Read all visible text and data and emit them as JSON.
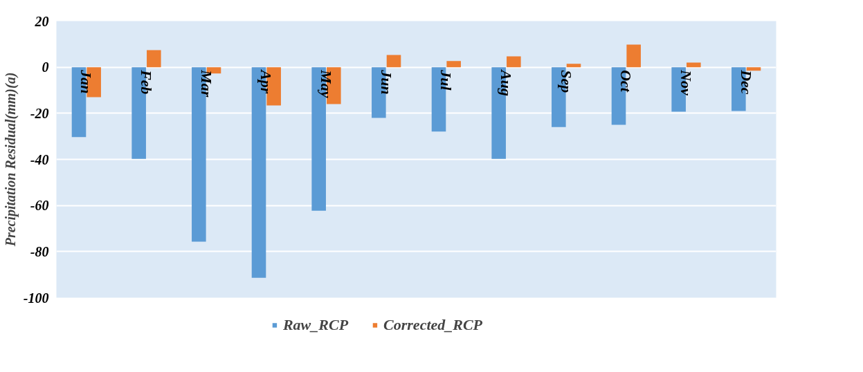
{
  "chart_data": {
    "type": "bar",
    "ylabel": "Precipitation Residual(mm)(a)",
    "categories": [
      "Jan",
      "Feb",
      "Mar",
      "Apr",
      "May",
      "Jun",
      "Jul",
      "Aug",
      "Sep",
      "Oct",
      "Nov",
      "Dec"
    ],
    "series": [
      {
        "name": "Raw_RCP",
        "color": "#5b9bd5",
        "values": [
          -30.3,
          -39.8,
          -75.7,
          -91.4,
          -62.3,
          -22,
          -27.9,
          -39.8,
          -26,
          -25,
          -19.3,
          -19
        ]
      },
      {
        "name": "Corrected_RCP",
        "color": "#ed7d31",
        "values": [
          -13,
          7.4,
          -2.7,
          -16.6,
          -16,
          5.3,
          2.7,
          4.7,
          1.5,
          9.8,
          2,
          -1.5
        ]
      }
    ],
    "ylim": [
      -100,
      20
    ],
    "yticks": [
      20,
      0,
      -20,
      -40,
      -60,
      -80,
      -100
    ],
    "grid": "y",
    "legend": "bottom"
  }
}
